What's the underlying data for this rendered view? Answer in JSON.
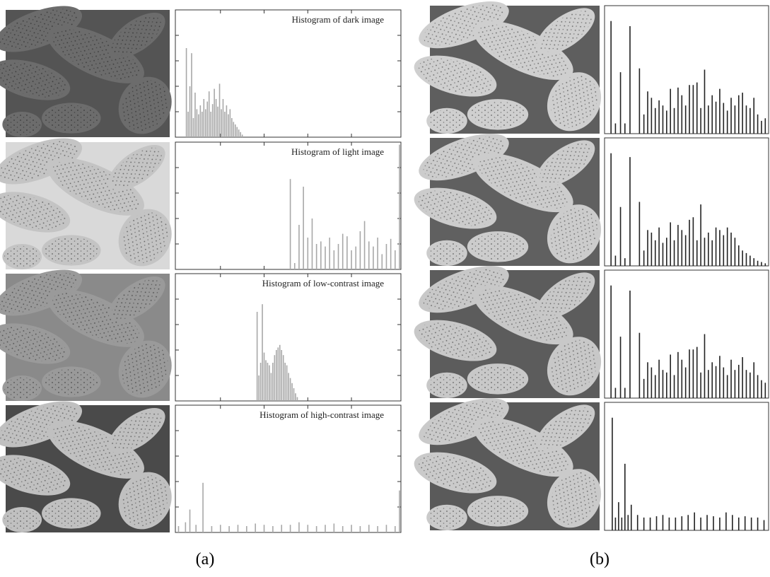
{
  "figure": {
    "xlim": [
      0,
      255
    ],
    "ylim": [
      0,
      100
    ],
    "xticks": [
      50,
      100,
      150,
      200
    ],
    "yticks": [
      20,
      40,
      60,
      80
    ],
    "panels": [
      {
        "label": "(a)",
        "color": "#a8a8a8",
        "histograms": [
          {
            "title": "Histogram of dark image",
            "x": [
              11,
              13,
              15,
              17,
              19,
              21,
              23,
              25,
              27,
              29,
              31,
              33,
              35,
              37,
              39,
              41,
              43,
              45,
              47,
              49,
              51,
              53,
              55,
              57,
              59,
              61,
              63,
              65,
              67,
              69,
              71,
              73,
              75
            ],
            "values": [
              70,
              20,
              40,
              66,
              15,
              35,
              22,
              18,
              25,
              20,
              30,
              22,
              28,
              36,
              20,
              26,
              38,
              30,
              24,
              42,
              22,
              30,
              20,
              25,
              18,
              22,
              15,
              12,
              10,
              8,
              6,
              4,
              2
            ]
          },
          {
            "title": "Histogram of light image",
            "x": [
              130,
              135,
              140,
              145,
              150,
              155,
              160,
              165,
              170,
              175,
              180,
              185,
              190,
              195,
              200,
              205,
              210,
              215,
              220,
              225,
              230,
              235,
              240,
              245,
              250,
              255
            ],
            "values": [
              71,
              5,
              35,
              65,
              25,
              40,
              20,
              22,
              18,
              25,
              15,
              20,
              28,
              26,
              15,
              18,
              30,
              38,
              22,
              18,
              25,
              12,
              20,
              24,
              15,
              98
            ]
          },
          {
            "title": "Histogram of low-contrast image",
            "x": [
              92,
              94,
              96,
              98,
              100,
              102,
              104,
              106,
              108,
              110,
              112,
              114,
              116,
              118,
              120,
              122,
              124,
              126,
              128,
              130,
              132,
              134,
              136,
              138
            ],
            "values": [
              70,
              20,
              30,
              76,
              38,
              32,
              30,
              28,
              22,
              30,
              36,
              40,
              42,
              44,
              40,
              36,
              30,
              28,
              22,
              18,
              14,
              10,
              6,
              3
            ]
          },
          {
            "title": "Histogram of high-contrast image",
            "x": [
              2,
              10,
              15,
              22,
              30,
              40,
              50,
              60,
              70,
              80,
              90,
              100,
              110,
              120,
              130,
              140,
              150,
              160,
              170,
              180,
              190,
              200,
              210,
              220,
              230,
              240,
              250,
              255
            ],
            "values": [
              5,
              8,
              18,
              6,
              39,
              5,
              6,
              5,
              6,
              5,
              7,
              6,
              5,
              6,
              6,
              8,
              6,
              5,
              6,
              7,
              5,
              6,
              5,
              6,
              5,
              6,
              5,
              33
            ]
          }
        ]
      },
      {
        "label": "(b)",
        "color": "#222222",
        "histograms": [
          {
            "x": [
              8,
              15,
              23,
              30,
              38,
              53,
              60,
              66,
              72,
              78,
              84,
              90,
              96,
              102,
              108,
              114,
              120,
              126,
              132,
              138,
              144,
              150,
              156,
              162,
              168,
              174,
              180,
              186,
              192,
              198,
              204,
              210,
              216,
              222,
              228,
              234,
              240,
              246,
              252
            ],
            "values": [
              88,
              8,
              48,
              8,
              84,
              51,
              15,
              33,
              28,
              20,
              26,
              22,
              18,
              35,
              20,
              36,
              30,
              22,
              38,
              38,
              40,
              20,
              50,
              22,
              30,
              25,
              35,
              24,
              18,
              28,
              22,
              30,
              32,
              22,
              20,
              28,
              15,
              10,
              12
            ]
          },
          {
            "x": [
              8,
              15,
              23,
              30,
              38,
              53,
              60,
              66,
              72,
              78,
              84,
              90,
              96,
              102,
              108,
              114,
              120,
              126,
              132,
              138,
              144,
              150,
              156,
              162,
              168,
              174,
              180,
              186,
              192,
              198,
              204,
              210,
              216,
              222,
              228,
              234,
              240,
              246,
              252
            ],
            "values": [
              88,
              8,
              46,
              6,
              85,
              50,
              12,
              28,
              26,
              20,
              30,
              18,
              22,
              34,
              20,
              32,
              28,
              24,
              36,
              38,
              20,
              48,
              22,
              26,
              20,
              30,
              28,
              24,
              30,
              26,
              22,
              16,
              12,
              10,
              8,
              6,
              4,
              3,
              2
            ]
          },
          {
            "x": [
              8,
              15,
              23,
              30,
              38,
              53,
              60,
              66,
              72,
              78,
              84,
              90,
              96,
              102,
              108,
              114,
              120,
              126,
              132,
              138,
              144,
              150,
              156,
              162,
              168,
              174,
              180,
              186,
              192,
              198,
              204,
              210,
              216,
              222,
              228,
              234,
              240,
              246,
              252
            ],
            "values": [
              88,
              8,
              48,
              8,
              84,
              51,
              15,
              28,
              24,
              18,
              30,
              22,
              20,
              34,
              18,
              36,
              30,
              24,
              38,
              38,
              40,
              20,
              50,
              22,
              28,
              25,
              33,
              24,
              18,
              30,
              22,
              26,
              32,
              22,
              20,
              28,
              18,
              14,
              12
            ]
          },
          {
            "x": [
              10,
              15,
              20,
              25,
              30,
              35,
              40,
              50,
              60,
              70,
              80,
              90,
              100,
              110,
              120,
              130,
              140,
              150,
              160,
              170,
              180,
              190,
              200,
              210,
              220,
              230,
              240,
              250
            ],
            "values": [
              88,
              10,
              22,
              10,
              52,
              12,
              20,
              12,
              10,
              10,
              11,
              12,
              10,
              10,
              11,
              12,
              14,
              10,
              12,
              11,
              10,
              14,
              12,
              10,
              11,
              10,
              10,
              8
            ]
          }
        ]
      }
    ]
  }
}
